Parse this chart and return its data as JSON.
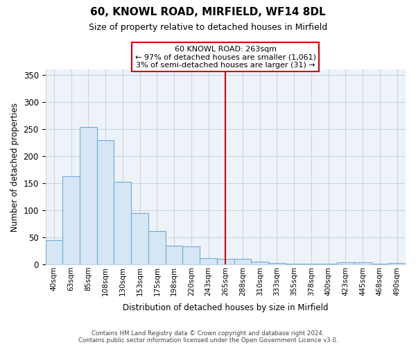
{
  "title": "60, KNOWL ROAD, MIRFIELD, WF14 8DL",
  "subtitle": "Size of property relative to detached houses in Mirfield",
  "xlabel": "Distribution of detached houses by size in Mirfield",
  "ylabel": "Number of detached properties",
  "bins": [
    "40sqm",
    "63sqm",
    "85sqm",
    "108sqm",
    "130sqm",
    "153sqm",
    "175sqm",
    "198sqm",
    "220sqm",
    "243sqm",
    "265sqm",
    "288sqm",
    "310sqm",
    "333sqm",
    "355sqm",
    "378sqm",
    "400sqm",
    "423sqm",
    "445sqm",
    "468sqm",
    "490sqm"
  ],
  "values": [
    45,
    163,
    254,
    229,
    153,
    95,
    62,
    34,
    33,
    11,
    10,
    10,
    5,
    2,
    1,
    1,
    1,
    4,
    4,
    1,
    3
  ],
  "bar_color": "#d6e6f5",
  "bar_edge_color": "#6aaed6",
  "vline_x_index": 10,
  "vline_color": "#cc0000",
  "annotation_title": "60 KNOWL ROAD: 263sqm",
  "annotation_line1": "← 97% of detached houses are smaller (1,061)",
  "annotation_line2": "3% of semi-detached houses are larger (31) →",
  "annotation_box_color": "#ffffff",
  "annotation_box_edge": "#cc0000",
  "footer_line1": "Contains HM Land Registry data © Crown copyright and database right 2024.",
  "footer_line2": "Contains public sector information licensed under the Open Government Licence v3.0.",
  "ylim": [
    0,
    360
  ],
  "background_color": "#ffffff",
  "ax_background_color": "#eef3f9",
  "grid_color": "#c8d4e0"
}
